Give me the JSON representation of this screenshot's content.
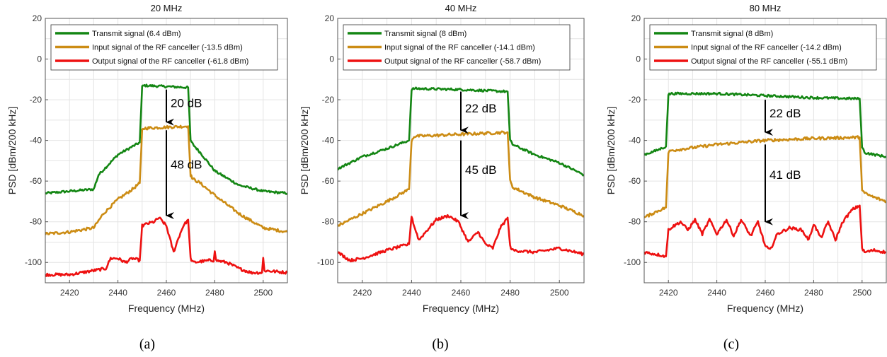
{
  "colors": {
    "transmit": "#138613",
    "input": "#cc8c14",
    "output": "#ee1111",
    "grid": "#e4e4e4",
    "axis": "#555555"
  },
  "chart_data": [
    {
      "type": "line",
      "title": "20 MHz",
      "xlabel": "Frequency (MHz)",
      "ylabel": "PSD [dBm/200 kHz]",
      "xlim": [
        2410,
        2510
      ],
      "ylim": [
        -110,
        20
      ],
      "xticks": [
        2420,
        2440,
        2460,
        2480,
        2500
      ],
      "yticks": [
        20,
        0,
        -20,
        -40,
        -60,
        -80,
        -100
      ],
      "grid": true,
      "legend_position": "top-left",
      "sublabel": "(a)",
      "series": [
        {
          "name": "Transmit signal (6.4 dBm)",
          "color_key": "transmit",
          "x": [
            2410,
            2420,
            2430,
            2432,
            2440,
            2446,
            2449,
            2450,
            2451,
            2460,
            2469,
            2470,
            2471,
            2474,
            2480,
            2490,
            2500,
            2510
          ],
          "y": [
            -66,
            -65,
            -64,
            -57,
            -47,
            -43,
            -41,
            -13.5,
            -13,
            -13.5,
            -14,
            -40,
            -42,
            -46,
            -55,
            -62,
            -65,
            -66
          ]
        },
        {
          "name": "Input signal of the RF canceller (-13.5 dBm)",
          "color_key": "input",
          "x": [
            2410,
            2420,
            2430,
            2434,
            2440,
            2446,
            2449,
            2450,
            2451,
            2460,
            2469,
            2470,
            2471,
            2474,
            2480,
            2490,
            2500,
            2510
          ],
          "y": [
            -86,
            -85,
            -83,
            -76,
            -69,
            -64,
            -61,
            -35,
            -34,
            -33.5,
            -33,
            -57,
            -59,
            -61,
            -67,
            -76,
            -83,
            -85
          ]
        },
        {
          "name": "Output signal of the RF canceller (-61.8 dBm)",
          "color_key": "output",
          "x": [
            2410,
            2420,
            2430,
            2435,
            2437,
            2440,
            2443,
            2446,
            2449,
            2450,
            2452,
            2455,
            2457,
            2460,
            2463,
            2465,
            2467,
            2469,
            2470,
            2471,
            2478,
            2479.5,
            2480,
            2480.5,
            2485,
            2490,
            2495,
            2499.5,
            2500,
            2500.5,
            2510
          ],
          "y": [
            -106,
            -106,
            -104,
            -103,
            -98,
            -98,
            -100,
            -98,
            -99,
            -82,
            -81,
            -80,
            -78,
            -82,
            -95,
            -88,
            -82,
            -79,
            -98,
            -100,
            -99,
            -99,
            -94,
            -99,
            -100,
            -103,
            -105,
            -105,
            -98,
            -104,
            -105
          ]
        }
      ],
      "annotations": [
        {
          "text": "20 dB",
          "x_from": 2460,
          "y_from": -15,
          "y_to": -31
        },
        {
          "text": "48 dB",
          "x_from": 2460,
          "y_from": -35,
          "y_to": -77
        }
      ]
    },
    {
      "type": "line",
      "title": "40 MHz",
      "xlabel": "Frequency (MHz)",
      "ylabel": "PSD [dBm/200 kHz]",
      "xlim": [
        2410,
        2510
      ],
      "ylim": [
        -110,
        20
      ],
      "xticks": [
        2420,
        2440,
        2460,
        2480,
        2500
      ],
      "yticks": [
        20,
        0,
        -20,
        -40,
        -60,
        -80,
        -100
      ],
      "grid": true,
      "legend_position": "top-left",
      "sublabel": "(b)",
      "series": [
        {
          "name": "Transmit signal (8 dBm)",
          "color_key": "transmit",
          "x": [
            2410,
            2420,
            2430,
            2439,
            2440,
            2441,
            2460,
            2479,
            2480,
            2481,
            2490,
            2500,
            2510
          ],
          "y": [
            -54,
            -48,
            -44,
            -40,
            -15,
            -14.5,
            -15,
            -16,
            -40,
            -42,
            -47,
            -51,
            -57
          ]
        },
        {
          "name": "Input signal of the RF canceller (-14.1 dBm)",
          "color_key": "input",
          "x": [
            2410,
            2420,
            2430,
            2439,
            2440,
            2441,
            2460,
            2479,
            2480,
            2481,
            2490,
            2500,
            2510
          ],
          "y": [
            -82,
            -76,
            -70,
            -64,
            -40,
            -38,
            -37,
            -36,
            -60,
            -63,
            -68,
            -72,
            -77
          ]
        },
        {
          "name": "Output signal of the RF canceller (-58.7 dBm)",
          "color_key": "output",
          "x": [
            2410,
            2415,
            2420,
            2430,
            2439,
            2440,
            2441,
            2443,
            2445,
            2450,
            2455,
            2459,
            2463,
            2467,
            2470,
            2473,
            2476,
            2479,
            2480,
            2481,
            2490,
            2500,
            2510
          ],
          "y": [
            -95,
            -99,
            -98,
            -94,
            -91,
            -77,
            -82,
            -89,
            -86,
            -79,
            -77,
            -80,
            -90,
            -85,
            -91,
            -93,
            -83,
            -78,
            -92,
            -94,
            -95,
            -93,
            -96
          ]
        }
      ],
      "annotations": [
        {
          "text": "22 dB",
          "x_from": 2460,
          "y_from": -16,
          "y_to": -35
        },
        {
          "text": "45 dB",
          "x_from": 2460,
          "y_from": -40,
          "y_to": -77
        }
      ]
    },
    {
      "type": "line",
      "title": "80 MHz",
      "xlabel": "Frequency (MHz)",
      "ylabel": "PSD [dBm/200 kHz]",
      "xlim": [
        2410,
        2510
      ],
      "ylim": [
        -110,
        20
      ],
      "xticks": [
        2420,
        2440,
        2460,
        2480,
        2500
      ],
      "yticks": [
        20,
        0,
        -20,
        -40,
        -60,
        -80,
        -100
      ],
      "grid": true,
      "legend_position": "top-left",
      "sublabel": "(c)",
      "series": [
        {
          "name": "Transmit signal (8 dBm)",
          "color_key": "transmit",
          "x": [
            2410,
            2415,
            2419,
            2420,
            2421,
            2440,
            2460,
            2480,
            2499,
            2500,
            2501,
            2505,
            2510
          ],
          "y": [
            -47,
            -45,
            -43,
            -17.5,
            -17,
            -17,
            -18,
            -19,
            -19.5,
            -43,
            -46,
            -47,
            -48
          ]
        },
        {
          "name": "Input signal of the RF canceller (-14.2 dBm)",
          "color_key": "input",
          "x": [
            2410,
            2415,
            2419,
            2420,
            2421,
            2440,
            2460,
            2480,
            2499,
            2500,
            2501,
            2505,
            2510
          ],
          "y": [
            -78,
            -75,
            -73,
            -46,
            -45,
            -42,
            -40,
            -39,
            -38.5,
            -64,
            -66,
            -68,
            -70
          ]
        },
        {
          "name": "Output signal of the RF canceller (-55.1 dBm)",
          "color_key": "output",
          "x": [
            2410,
            2415,
            2419,
            2420,
            2421,
            2425,
            2428,
            2431,
            2434,
            2437,
            2440,
            2444,
            2447,
            2450,
            2454,
            2457,
            2460,
            2462,
            2465,
            2470,
            2475,
            2478,
            2480,
            2483,
            2486,
            2489,
            2492,
            2496,
            2499,
            2500,
            2501,
            2505,
            2510
          ],
          "y": [
            -95,
            -96,
            -97,
            -84,
            -83,
            -80,
            -84,
            -79,
            -86,
            -79,
            -86,
            -79,
            -87,
            -79,
            -87,
            -80,
            -92,
            -94,
            -86,
            -83,
            -84,
            -89,
            -81,
            -88,
            -80,
            -89,
            -80,
            -74,
            -72,
            -93,
            -95,
            -94,
            -95
          ]
        }
      ],
      "annotations": [
        {
          "text": "22 dB",
          "x_from": 2460,
          "y_from": -20,
          "y_to": -36
        },
        {
          "text": "41 dB",
          "x_from": 2460,
          "y_from": -42,
          "y_to": -80
        }
      ]
    }
  ]
}
